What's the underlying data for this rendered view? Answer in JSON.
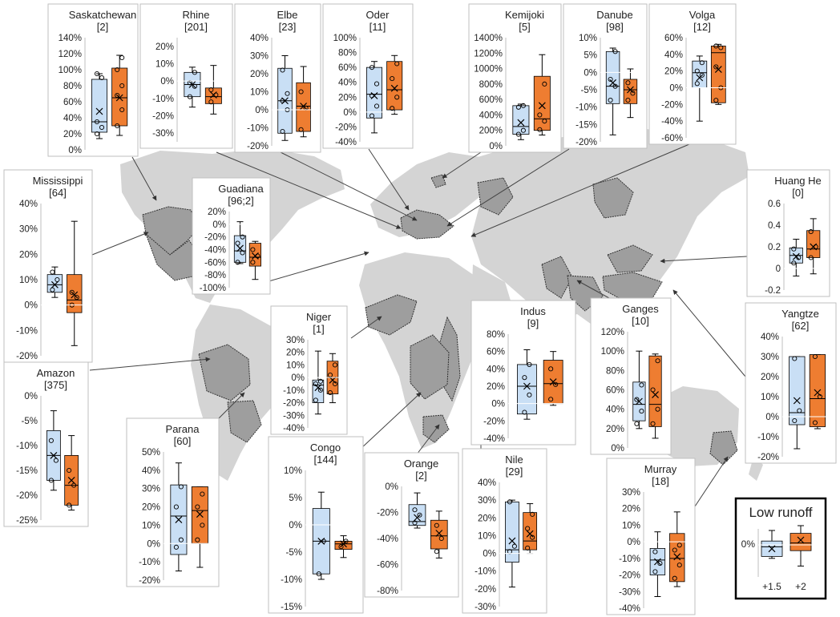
{
  "colors": {
    "baseline": "#c9dff5",
    "future": "#ee7d31",
    "basin": "#9e9e9e",
    "land": "#d4d4d4",
    "panel_border": "#bfbfbf",
    "whisker": "#000000"
  },
  "legend": {
    "title": "Low runoff",
    "zero_label": "0%",
    "series": [
      {
        "name": "+1.5",
        "color": "#c9dff5"
      },
      {
        "name": "+2",
        "color": "#ee7d31"
      }
    ]
  },
  "chart_data": [
    {
      "type": "box",
      "title": "Saskatchewan",
      "subtitle": "[2]",
      "ylim": [
        0,
        140
      ],
      "ticks": [
        0,
        20,
        40,
        60,
        80,
        100,
        120,
        140
      ],
      "tick_labels": [
        "0%",
        "20%",
        "40%",
        "60%",
        "80%",
        "100%",
        "120%",
        "140%"
      ],
      "series": [
        {
          "name": "+1.5",
          "min": 14,
          "q1": 22,
          "median": 35,
          "q3": 88,
          "max": 95,
          "mean": 48,
          "points": [
            20,
            28,
            35,
            90,
            95
          ]
        },
        {
          "name": "+2",
          "min": 18,
          "q1": 30,
          "median": 65,
          "q3": 102,
          "max": 118,
          "mean": 65,
          "points": [
            30,
            50,
            68,
            80,
            100,
            115
          ]
        }
      ]
    },
    {
      "type": "box",
      "title": "Rhine",
      "subtitle": "[201]",
      "ylim": [
        -35,
        25
      ],
      "ticks": [
        -30,
        -20,
        -10,
        0,
        10,
        20
      ],
      "tick_labels": [
        "-30%",
        "-20%",
        "-10%",
        "0%",
        "10%",
        "20%"
      ],
      "series": [
        {
          "name": "+1.5",
          "min": -15,
          "q1": -9,
          "median": -2,
          "q3": 5,
          "max": 8,
          "mean": -2,
          "points": [
            -9,
            -3,
            -1,
            5
          ]
        },
        {
          "name": "+2",
          "min": -19,
          "q1": -13,
          "median": -9,
          "q3": -4,
          "max": 9,
          "mean": -8,
          "points": [
            -12,
            -8,
            -5
          ]
        }
      ]
    },
    {
      "type": "box",
      "title": "Elbe",
      "subtitle": "[23]",
      "ylim": [
        -20,
        40
      ],
      "ticks": [
        -20,
        -10,
        0,
        10,
        20,
        30,
        40
      ],
      "tick_labels": [
        "-20%",
        "-10%",
        "0%",
        "10%",
        "20%",
        "30%",
        "40%"
      ],
      "series": [
        {
          "name": "+1.5",
          "min": -17,
          "q1": -13,
          "median": 5,
          "q3": 23,
          "max": 30,
          "mean": 5,
          "points": [
            -12,
            0,
            5,
            9,
            22
          ]
        },
        {
          "name": "+2",
          "min": -15,
          "q1": -12,
          "median": 2,
          "q3": 15,
          "max": 24,
          "mean": 2,
          "points": [
            -11,
            1,
            10
          ]
        }
      ]
    },
    {
      "type": "box",
      "title": "Oder",
      "subtitle": "[11]",
      "ylim": [
        -40,
        100
      ],
      "ticks": [
        -40,
        -20,
        0,
        20,
        40,
        60,
        80,
        100
      ],
      "tick_labels": [
        "-40%",
        "-20%",
        "0%",
        "20%",
        "40%",
        "60%",
        "80%",
        "100%"
      ],
      "series": [
        {
          "name": "+1.5",
          "min": -28,
          "q1": -8,
          "median": 24,
          "q3": 60,
          "max": 68,
          "mean": 22,
          "points": [
            -5,
            8,
            22,
            38,
            60
          ]
        },
        {
          "name": "+2",
          "min": -3,
          "q1": 3,
          "median": 30,
          "q3": 68,
          "max": 76,
          "mean": 32,
          "points": [
            5,
            20,
            45,
            65
          ]
        }
      ]
    },
    {
      "type": "box",
      "title": "Kemijoki",
      "subtitle": "[5]",
      "ylim": [
        0,
        1400
      ],
      "ticks": [
        0,
        200,
        400,
        600,
        800,
        1000,
        1200,
        1400
      ],
      "tick_labels": [
        "0%",
        "200%",
        "400%",
        "600%",
        "800%",
        "1000%",
        "1200%",
        "1400%"
      ],
      "series": [
        {
          "name": "+1.5",
          "min": 80,
          "q1": 150,
          "median": 250,
          "q3": 520,
          "max": 540,
          "mean": 300,
          "points": [
            150,
            200,
            500,
            520
          ]
        },
        {
          "name": "+2",
          "min": 140,
          "q1": 200,
          "median": 350,
          "q3": 900,
          "max": 1180,
          "mean": 520,
          "points": [
            210,
            320,
            400,
            800
          ]
        }
      ]
    },
    {
      "type": "box",
      "title": "Danube",
      "subtitle": "[98]",
      "ylim": [
        -20,
        10
      ],
      "ticks": [
        -20,
        -15,
        -10,
        -5,
        0,
        5,
        10
      ],
      "tick_labels": [
        "-20%",
        "-15%",
        "-10%",
        "-5%",
        "0%",
        "5%",
        "10%"
      ],
      "series": [
        {
          "name": "+1.5",
          "min": -18,
          "q1": -9,
          "median": -4,
          "q3": 6,
          "max": 7,
          "mean": -3,
          "points": [
            -8,
            -4,
            -2,
            6
          ]
        },
        {
          "name": "+2",
          "min": -13,
          "q1": -9,
          "median": -5,
          "q3": -2,
          "max": 1,
          "mean": -5,
          "points": [
            -8,
            -6,
            -3
          ]
        }
      ]
    },
    {
      "type": "box",
      "title": "Volga",
      "subtitle": "[12]",
      "ylim": [
        -60,
        60
      ],
      "ticks": [
        -60,
        -40,
        -20,
        0,
        20,
        40,
        60
      ],
      "tick_labels": [
        "-60%",
        "-40%",
        "-20%",
        "0%",
        "20%",
        "40%",
        "60%"
      ],
      "series": [
        {
          "name": "+1.5",
          "min": -40,
          "q1": 0,
          "median": 18,
          "q3": 32,
          "max": 38,
          "mean": 12,
          "points": [
            5,
            15,
            20,
            30
          ]
        },
        {
          "name": "+2",
          "min": -20,
          "q1": -18,
          "median": 42,
          "q3": 50,
          "max": 52,
          "mean": 22,
          "points": [
            -15,
            0,
            25,
            48,
            50
          ]
        }
      ]
    },
    {
      "type": "box",
      "title": "Mississippi",
      "subtitle": "[64]",
      "ylim": [
        -20,
        40
      ],
      "ticks": [
        -20,
        -10,
        0,
        10,
        20,
        30,
        40
      ],
      "tick_labels": [
        "-20%",
        "-10%",
        "0%",
        "10%",
        "20%",
        "30%",
        "40%"
      ],
      "series": [
        {
          "name": "+1.5",
          "min": 3,
          "q1": 5,
          "median": 8,
          "q3": 12,
          "max": 15,
          "mean": 8,
          "points": [
            6,
            10,
            13
          ]
        },
        {
          "name": "+2",
          "min": -16,
          "q1": -3,
          "median": 2,
          "q3": 12,
          "max": 33,
          "mean": 4,
          "points": [
            0,
            3,
            5
          ]
        }
      ]
    },
    {
      "type": "box",
      "title": "Guadiana",
      "subtitle": "[96;2]",
      "ylim": [
        -100,
        20
      ],
      "ticks": [
        -100,
        -80,
        -60,
        -40,
        -20,
        0,
        20
      ],
      "tick_labels": [
        "-100%",
        "-80%",
        "-60%",
        "-40%",
        "-20%",
        "0%",
        "20%"
      ],
      "series": [
        {
          "name": "+1.5",
          "min": -62,
          "q1": -60,
          "median": -42,
          "q3": -18,
          "max": 4,
          "mean": -38,
          "points": [
            -60,
            -45,
            -30,
            -20
          ]
        },
        {
          "name": "+2",
          "min": -87,
          "q1": -66,
          "median": -52,
          "q3": -30,
          "max": -27,
          "mean": -50,
          "points": [
            -60,
            -50,
            -40
          ]
        }
      ]
    },
    {
      "type": "box",
      "title": "Huang He",
      "subtitle": "[0]",
      "ylim": [
        -0.2,
        0.6
      ],
      "ticks": [
        -0.2,
        0,
        0.2,
        0.4,
        0.6
      ],
      "tick_labels": [
        "-0.2",
        "0",
        "0.2",
        "0.4",
        "0.6"
      ],
      "series": [
        {
          "name": "+1.5",
          "min": -0.07,
          "q1": 0.05,
          "median": 0.12,
          "q3": 0.19,
          "max": 0.27,
          "mean": 0.11,
          "points": [
            0.05,
            0.1,
            0.18
          ]
        },
        {
          "name": "+2",
          "min": -0.05,
          "q1": 0.1,
          "median": 0.18,
          "q3": 0.35,
          "max": 0.46,
          "mean": 0.2,
          "points": [
            0.1,
            0.2,
            0.34
          ]
        }
      ]
    },
    {
      "type": "box",
      "title": "Niger",
      "subtitle": "[1]",
      "ylim": [
        -40,
        30
      ],
      "ticks": [
        -40,
        -30,
        -20,
        -10,
        0,
        10,
        20,
        30
      ],
      "tick_labels": [
        "-40%",
        "-30%",
        "-20%",
        "-10%",
        "0%",
        "10%",
        "20%",
        "30%"
      ],
      "series": [
        {
          "name": "+1.5",
          "min": -29,
          "q1": -20,
          "median": -6,
          "q3": -2,
          "max": 21,
          "mean": -8,
          "points": [
            -18,
            -10,
            -5,
            -3
          ]
        },
        {
          "name": "+2",
          "min": -20,
          "q1": -13,
          "median": 0,
          "q3": 13,
          "max": 19,
          "mean": -2,
          "points": [
            -12,
            -5,
            2,
            10
          ]
        }
      ]
    },
    {
      "type": "box",
      "title": "Indus",
      "subtitle": "[9]",
      "ylim": [
        -40,
        80
      ],
      "ticks": [
        -40,
        -20,
        0,
        20,
        40,
        60,
        80
      ],
      "tick_labels": [
        "-40%",
        "-20%",
        "0%",
        "20%",
        "40%",
        "60%",
        "80%"
      ],
      "series": [
        {
          "name": "+1.5",
          "min": -18,
          "q1": -12,
          "median": 20,
          "q3": 45,
          "max": 62,
          "mean": 20,
          "points": [
            -10,
            10,
            30,
            45
          ]
        },
        {
          "name": "+2",
          "min": -2,
          "q1": 0,
          "median": 23,
          "q3": 50,
          "max": 60,
          "mean": 25,
          "points": [
            5,
            22,
            40
          ]
        }
      ]
    },
    {
      "type": "box",
      "title": "Ganges",
      "subtitle": "[10]",
      "ylim": [
        0,
        120
      ],
      "ticks": [
        0,
        20,
        40,
        60,
        80,
        100,
        120
      ],
      "tick_labels": [
        "0%",
        "20%",
        "40%",
        "60%",
        "80%",
        "100%",
        "120%"
      ],
      "series": [
        {
          "name": "+1.5",
          "min": 20,
          "q1": 28,
          "median": 45,
          "q3": 68,
          "max": 100,
          "mean": 48,
          "points": [
            25,
            38,
            50,
            65
          ]
        },
        {
          "name": "+2",
          "min": 10,
          "q1": 22,
          "median": 45,
          "q3": 95,
          "max": 97,
          "mean": 55,
          "points": [
            25,
            40,
            60,
            90
          ]
        }
      ]
    },
    {
      "type": "box",
      "title": "Yangtze",
      "subtitle": "[62]",
      "ylim": [
        -20,
        40
      ],
      "ticks": [
        -20,
        -10,
        0,
        10,
        20,
        30,
        40
      ],
      "tick_labels": [
        "-20%",
        "-10%",
        "0%",
        "10%",
        "20%",
        "30%",
        "40%"
      ],
      "series": [
        {
          "name": "+1.5",
          "min": -16,
          "q1": -4,
          "median": 2,
          "q3": 30,
          "max": 30,
          "mean": 8,
          "points": [
            -2,
            3,
            29
          ]
        },
        {
          "name": "+2",
          "min": -6,
          "q1": -5,
          "median": 9,
          "q3": 31,
          "max": 31,
          "mean": 12,
          "points": [
            -3,
            10,
            30
          ]
        }
      ]
    },
    {
      "type": "box",
      "title": "Amazon",
      "subtitle": "[375]",
      "ylim": [
        -25,
        0
      ],
      "ticks": [
        -25,
        -20,
        -15,
        -10,
        -5,
        0
      ],
      "tick_labels": [
        "-25%",
        "-20%",
        "-15%",
        "-10%",
        "-5%",
        "0%"
      ],
      "series": [
        {
          "name": "+1.5",
          "min": -19,
          "q1": -17,
          "median": -12,
          "q3": -7,
          "max": -3,
          "mean": -12,
          "points": [
            -17,
            -13,
            -9
          ]
        },
        {
          "name": "+2",
          "min": -23,
          "q1": -22,
          "median": -18,
          "q3": -12,
          "max": -8,
          "mean": -17,
          "points": [
            -22,
            -18,
            -15
          ]
        }
      ]
    },
    {
      "type": "box",
      "title": "Parana",
      "subtitle": "[60]",
      "ylim": [
        -20,
        50
      ],
      "ticks": [
        -20,
        -10,
        0,
        10,
        20,
        30,
        40,
        50
      ],
      "tick_labels": [
        "-20%",
        "-10%",
        "0%",
        "10%",
        "20%",
        "30%",
        "40%",
        "50%"
      ],
      "series": [
        {
          "name": "+1.5",
          "min": -15,
          "q1": -6,
          "median": 15,
          "q3": 32,
          "max": 44,
          "mean": 13,
          "points": [
            -2,
            2,
            20,
            31
          ]
        },
        {
          "name": "+2",
          "min": -13,
          "q1": 0,
          "median": 18,
          "q3": 31,
          "max": 31,
          "mean": 16,
          "points": [
            2,
            10,
            20,
            27
          ]
        }
      ]
    },
    {
      "type": "box",
      "title": "Congo",
      "subtitle": "[144]",
      "ylim": [
        -15,
        10
      ],
      "ticks": [
        -15,
        -10,
        -5,
        0,
        5,
        10
      ],
      "tick_labels": [
        "-15%",
        "-10%",
        "-5%",
        "0%",
        "5%",
        "10%"
      ],
      "series": [
        {
          "name": "+1.5",
          "min": -10,
          "q1": -9,
          "median": -3,
          "q3": 3,
          "max": 6,
          "mean": -3,
          "points": [
            -9,
            -3
          ]
        },
        {
          "name": "+2",
          "min": -6,
          "q1": -4.5,
          "median": -3.5,
          "q3": -3,
          "max": -2,
          "mean": -3.5,
          "points": [
            -4,
            -3
          ]
        }
      ]
    },
    {
      "type": "box",
      "title": "Orange",
      "subtitle": "[2]",
      "ylim": [
        -80,
        0
      ],
      "ticks": [
        -80,
        -60,
        -40,
        -20,
        0
      ],
      "tick_labels": [
        "-80%",
        "-60%",
        "-40%",
        "-20%",
        "0%"
      ],
      "series": [
        {
          "name": "+1.5",
          "min": -32,
          "q1": -30,
          "median": -27,
          "q3": -14,
          "max": -5,
          "mean": -24,
          "points": [
            -28,
            -22,
            -18
          ]
        },
        {
          "name": "+2",
          "min": -55,
          "q1": -48,
          "median": -38,
          "q3": -26,
          "max": -19,
          "mean": -36,
          "points": [
            -50,
            -40,
            -30
          ]
        }
      ]
    },
    {
      "type": "box",
      "title": "Nile",
      "subtitle": "[29]",
      "ylim": [
        -30,
        40
      ],
      "ticks": [
        -30,
        -20,
        -10,
        0,
        10,
        20,
        30,
        40
      ],
      "tick_labels": [
        "-30%",
        "-20%",
        "-10%",
        "0%",
        "10%",
        "20%",
        "30%",
        "40%"
      ],
      "series": [
        {
          "name": "+1.5",
          "min": -19,
          "q1": -5,
          "median": 2,
          "q3": 29,
          "max": 30,
          "mean": 7,
          "points": [
            1,
            4,
            29
          ]
        },
        {
          "name": "+2",
          "min": 0,
          "q1": 2,
          "median": 7,
          "q3": 23,
          "max": 28,
          "mean": 11,
          "points": [
            3,
            9,
            14,
            22
          ]
        }
      ]
    },
    {
      "type": "box",
      "title": "Murray",
      "subtitle": "[18]",
      "ylim": [
        -40,
        30
      ],
      "ticks": [
        -40,
        -30,
        -20,
        -10,
        0,
        10,
        20,
        30
      ],
      "tick_labels": [
        "-40%",
        "-30%",
        "-20%",
        "-10%",
        "0%",
        "10%",
        "20%",
        "30%"
      ],
      "series": [
        {
          "name": "+1.5",
          "min": -33,
          "q1": -20,
          "median": -11,
          "q3": -4,
          "max": 6,
          "mean": -12,
          "points": [
            -18,
            -13,
            -6
          ]
        },
        {
          "name": "+2",
          "min": -27,
          "q1": -24,
          "median": -10,
          "q3": 5,
          "max": 18,
          "mean": -9,
          "points": [
            -22,
            -14,
            -5,
            -2
          ]
        }
      ]
    }
  ]
}
